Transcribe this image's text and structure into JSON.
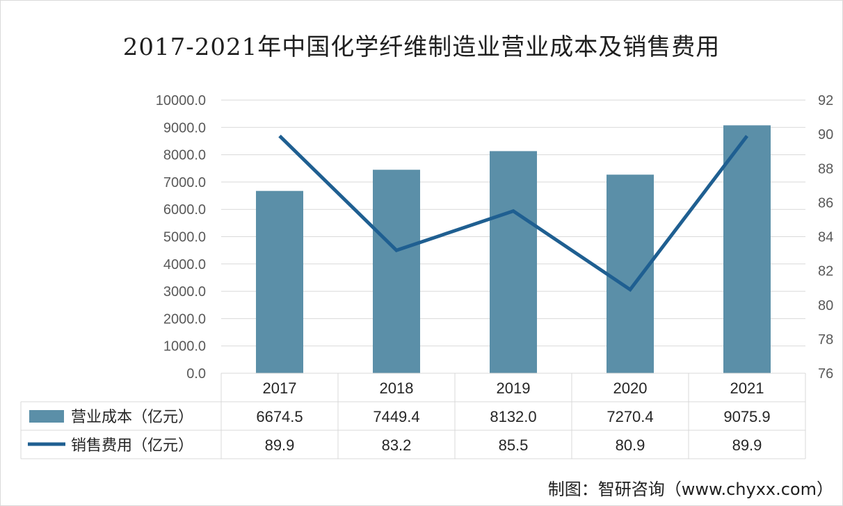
{
  "title": "2017-2021年中国化学纤维制造业营业成本及销售费用",
  "source": "制图：智研咨询（www.chyxx.com）",
  "colors": {
    "bar": "#5b8fa8",
    "line": "#1f5f91",
    "grid": "#d9d9d9"
  },
  "chart_data": {
    "type": "bar",
    "categories": [
      "2017",
      "2018",
      "2019",
      "2020",
      "2021"
    ],
    "series": [
      {
        "name": "营业成本（亿元）",
        "type": "bar",
        "axis": "left",
        "values": [
          6674.5,
          7449.4,
          8132.0,
          7270.4,
          9075.9
        ],
        "labels": [
          "6674.5",
          "7449.4",
          "8132.0",
          "7270.4",
          "9075.9"
        ]
      },
      {
        "name": "销售费用（亿元）",
        "type": "line",
        "axis": "right",
        "values": [
          89.9,
          83.2,
          85.5,
          80.9,
          89.9
        ],
        "labels": [
          "89.9",
          "83.2",
          "85.5",
          "80.9",
          "89.9"
        ]
      }
    ],
    "left_axis": {
      "ylim": [
        0,
        10000
      ],
      "ticks": [
        "0.0",
        "1000.0",
        "2000.0",
        "3000.0",
        "4000.0",
        "5000.0",
        "6000.0",
        "7000.0",
        "8000.0",
        "9000.0",
        "10000.0"
      ]
    },
    "right_axis": {
      "ylim": [
        76,
        92
      ],
      "ticks": [
        "76",
        "78",
        "80",
        "82",
        "84",
        "86",
        "88",
        "90",
        "92"
      ]
    },
    "grid": true,
    "legend": "data-table"
  }
}
